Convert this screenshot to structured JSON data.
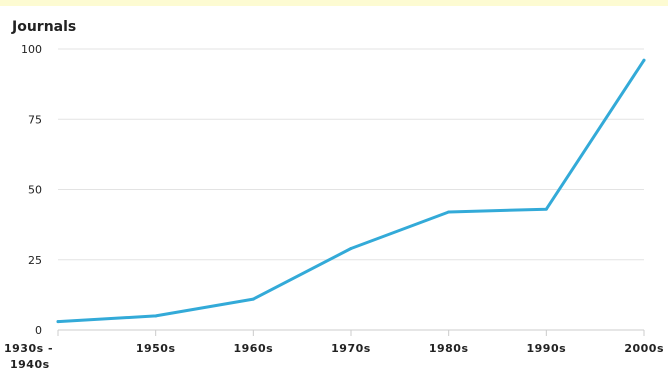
{
  "chart_data": {
    "type": "line",
    "title": "",
    "ylabel": "Journals",
    "xlabel": "",
    "categories": [
      "1930s - 1940s",
      "1950s",
      "1960s",
      "1970s",
      "1980s",
      "1990s",
      "2000s"
    ],
    "category_lines": [
      [
        "1930s -",
        "1940s"
      ],
      [
        "1950s"
      ],
      [
        "1960s"
      ],
      [
        "1970s"
      ],
      [
        "1980s"
      ],
      [
        "1990s"
      ],
      [
        "2000s"
      ]
    ],
    "series": [
      {
        "values": [
          3,
          5,
          11,
          29,
          42,
          43,
          96
        ],
        "color": "#33aad8"
      }
    ],
    "ylim": [
      0,
      100
    ],
    "yticks": [
      0,
      25,
      50,
      75,
      100
    ],
    "grid": true,
    "legend": "none"
  },
  "colors": {
    "top_band": "#fdfbd2",
    "grid": "#e3e3e3",
    "text": "#222222"
  }
}
